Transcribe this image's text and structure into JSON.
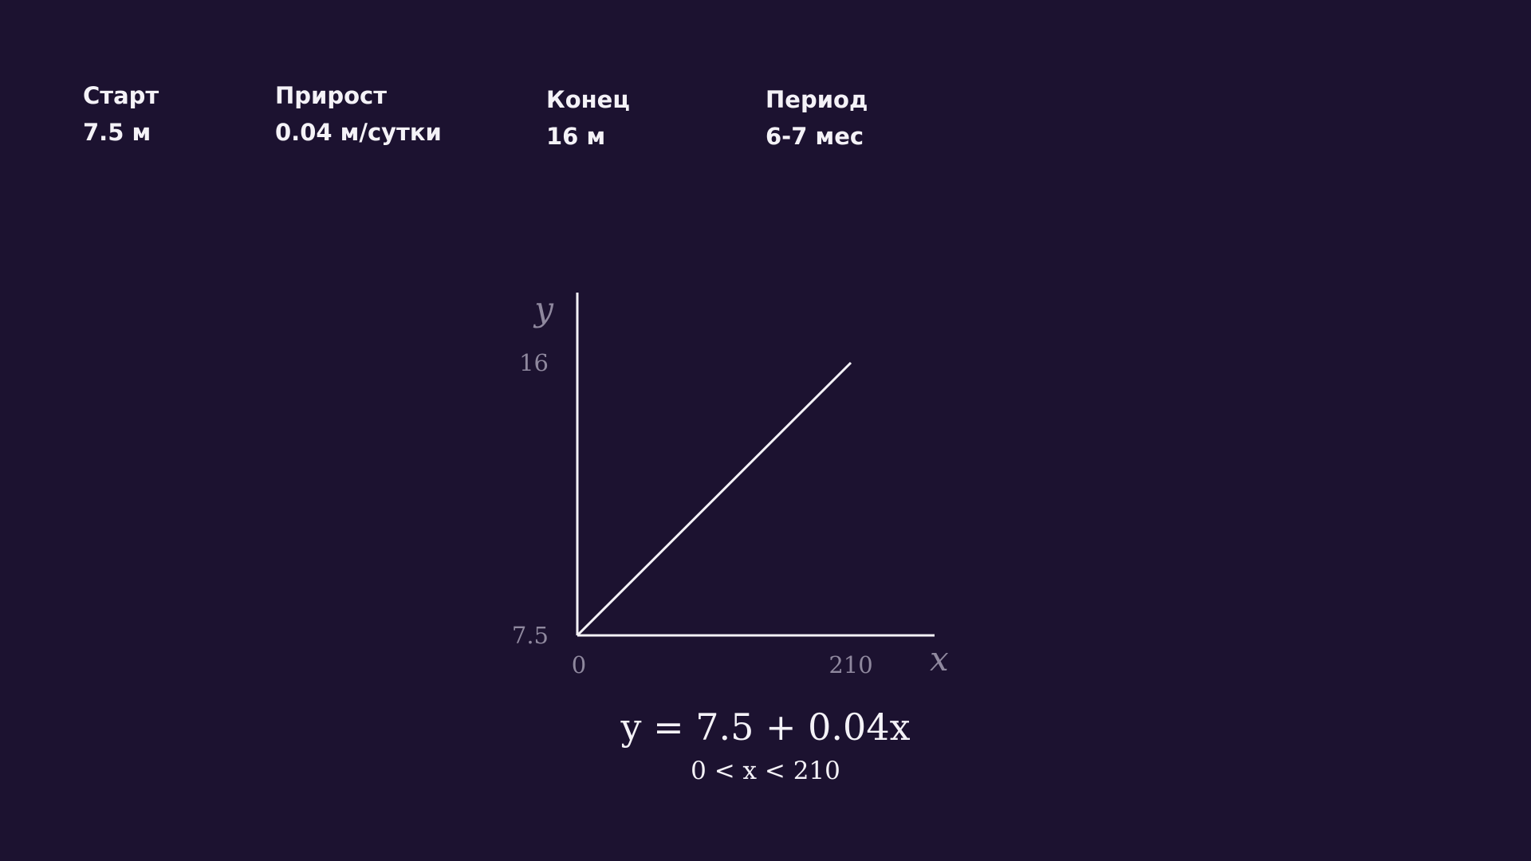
{
  "stats": {
    "start": {
      "label": "Старт",
      "value": "7.5 м"
    },
    "growth": {
      "label": "Прирост",
      "value": "0.04 м/сутки"
    },
    "end": {
      "label": "Конец",
      "value": "16 м"
    },
    "period": {
      "label": "Период",
      "value": "6-7 мес"
    }
  },
  "colors": {
    "background": "#1c1230",
    "foreground": "#f4f2f7",
    "muted": "#8f889e"
  },
  "chart_data": {
    "type": "line",
    "title": "",
    "xlabel": "x",
    "ylabel": "y",
    "xlim": [
      0,
      260
    ],
    "ylim": [
      7.5,
      16
    ],
    "x_ticks": [
      {
        "value": 0,
        "label": "0"
      },
      {
        "value": 210,
        "label": "210"
      }
    ],
    "y_ticks": [
      {
        "value": 7.5,
        "label": "7.5"
      },
      {
        "value": 16,
        "label": "16"
      }
    ],
    "grid": false,
    "series": [
      {
        "x": [
          0,
          210
        ],
        "y": [
          7.5,
          16
        ]
      }
    ],
    "equation": "y = 7.5 + 0.04x",
    "condition": "0 < x < 210"
  }
}
